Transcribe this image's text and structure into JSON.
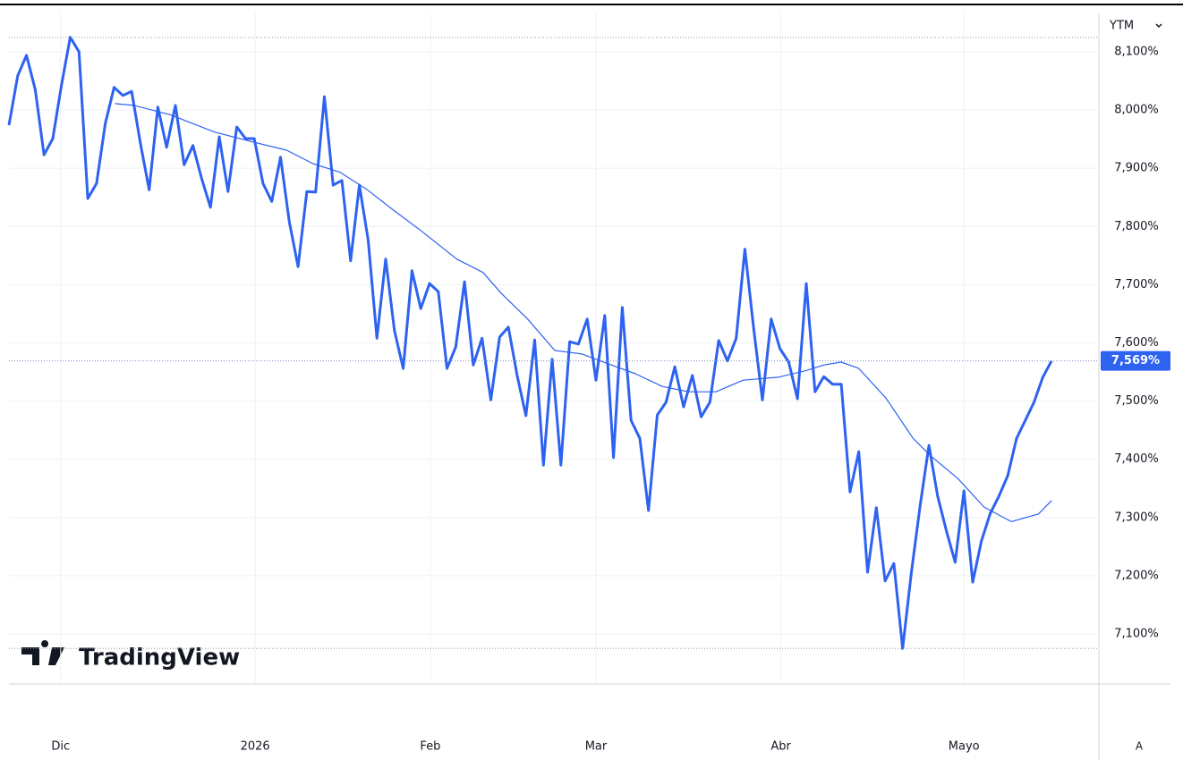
{
  "chart_data": {
    "type": "line",
    "ylim": [
      7.014,
      8.166
    ],
    "yticks": [
      {
        "value": 7.1,
        "label": "7,100%"
      },
      {
        "value": 7.2,
        "label": "7,200%"
      },
      {
        "value": 7.3,
        "label": "7,300%"
      },
      {
        "value": 7.4,
        "label": "7,400%"
      },
      {
        "value": 7.5,
        "label": "7,500%"
      },
      {
        "value": 7.6,
        "label": "7,600%"
      },
      {
        "value": 7.7,
        "label": "7,700%"
      },
      {
        "value": 7.8,
        "label": "7,800%"
      },
      {
        "value": 7.9,
        "label": "7,900%"
      },
      {
        "value": 8.0,
        "label": "8,000%"
      },
      {
        "value": 8.1,
        "label": "8,100%"
      }
    ],
    "xlim": [
      0,
      124.4
    ],
    "xticks": [
      {
        "value": 5.9,
        "label": "Dic"
      },
      {
        "value": 28.1,
        "label": "2026"
      },
      {
        "value": 48.1,
        "label": "Feb"
      },
      {
        "value": 67.0,
        "label": "Mar"
      },
      {
        "value": 88.1,
        "label": "Abr"
      },
      {
        "value": 109.0,
        "label": "Mayo"
      }
    ],
    "grid": true,
    "series": [
      {
        "color": "#2e62f0",
        "last_label": "7,569%",
        "values": [
          7.974,
          8.059,
          8.094,
          8.035,
          7.923,
          7.951,
          8.043,
          8.125,
          8.1,
          7.848,
          7.874,
          7.977,
          8.039,
          8.025,
          8.032,
          7.943,
          7.863,
          8.005,
          7.936,
          8.008,
          7.906,
          7.939,
          7.882,
          7.833,
          7.954,
          7.86,
          7.971,
          7.951,
          7.951,
          7.874,
          7.843,
          7.919,
          7.808,
          7.731,
          7.86,
          7.859,
          8.023,
          7.871,
          7.879,
          7.741,
          7.871,
          7.777,
          7.608,
          7.744,
          7.621,
          7.556,
          7.724,
          7.659,
          7.702,
          7.688,
          7.556,
          7.593,
          7.705,
          7.562,
          7.608,
          7.502,
          7.61,
          7.627,
          7.544,
          7.475,
          7.605,
          7.39,
          7.572,
          7.39,
          7.602,
          7.598,
          7.641,
          7.536,
          7.647,
          7.403,
          7.661,
          7.467,
          7.436,
          7.312,
          7.476,
          7.498,
          7.559,
          7.49,
          7.544,
          7.473,
          7.498,
          7.604,
          7.569,
          7.608,
          7.761,
          7.625,
          7.502,
          7.641,
          7.59,
          7.567,
          7.504,
          7.702,
          7.516,
          7.542,
          7.529,
          7.529,
          7.344,
          7.413,
          7.206,
          7.317,
          7.191,
          7.221,
          7.075,
          7.206,
          7.321,
          7.424,
          7.337,
          7.277,
          7.223,
          7.346,
          7.189,
          7.26,
          7.307,
          7.337,
          7.372,
          7.436,
          7.467,
          7.498,
          7.541,
          7.569
        ]
      },
      {
        "color": "#2e62f0",
        "x": [
          12.1,
          14.3,
          18.4,
          23.5,
          27.6,
          31.7,
          34.7,
          37.8,
          40.9,
          43.9,
          47.0,
          51.1,
          54.1,
          56.2,
          59.2,
          62.3,
          65.4,
          68.4,
          71.5,
          74.6,
          77.6,
          80.7,
          83.8,
          87.8,
          90.9,
          93.0,
          95.0,
          97.0,
          100.1,
          103.2,
          105.2,
          108.3,
          111.3,
          114.4,
          117.5,
          119.0
        ],
        "values": [
          8.011,
          8.008,
          7.992,
          7.962,
          7.946,
          7.931,
          7.908,
          7.893,
          7.863,
          7.828,
          7.793,
          7.744,
          7.721,
          7.685,
          7.641,
          7.587,
          7.581,
          7.564,
          7.547,
          7.525,
          7.516,
          7.516,
          7.536,
          7.541,
          7.552,
          7.562,
          7.567,
          7.556,
          7.505,
          7.436,
          7.406,
          7.367,
          7.318,
          7.293,
          7.306,
          7.329
        ]
      }
    ]
  },
  "ui": {
    "series_selector": "YTM",
    "auto_scale_button": "A",
    "watermark": "TradingView"
  }
}
